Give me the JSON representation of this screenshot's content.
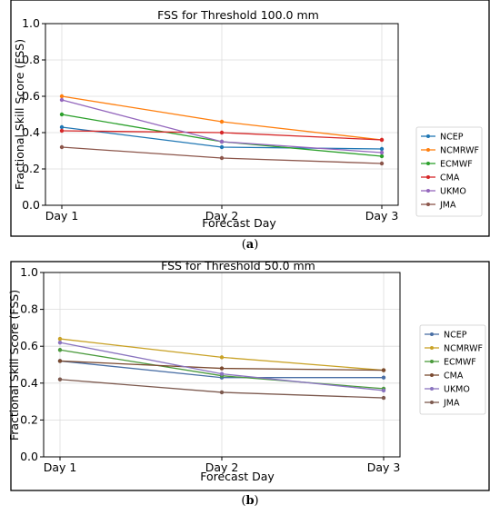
{
  "chart_data": [
    {
      "type": "line",
      "panel_label": "(a)",
      "title": "FSS for Threshold 100.0 mm",
      "xlabel": "Forecast Day",
      "ylabel": "Fractional Skill Score (FSS)",
      "categories": [
        "Day 1",
        "Day 2",
        "Day 3"
      ],
      "ylim": [
        0.0,
        1.0
      ],
      "yticks": [
        "0.0",
        "0.2",
        "0.4",
        "0.6",
        "0.8",
        "1.0"
      ],
      "grid": true,
      "legend": "right",
      "series": [
        {
          "name": "NCEP",
          "color": "#1f77b4",
          "values": [
            0.43,
            0.32,
            0.31
          ]
        },
        {
          "name": "NCMRWF",
          "color": "#ff7f0e",
          "values": [
            0.6,
            0.46,
            0.36
          ]
        },
        {
          "name": "ECMWF",
          "color": "#2ca02c",
          "values": [
            0.5,
            0.35,
            0.27
          ]
        },
        {
          "name": "CMA",
          "color": "#d62728",
          "values": [
            0.41,
            0.4,
            0.36
          ]
        },
        {
          "name": "UKMO",
          "color": "#9467bd",
          "values": [
            0.58,
            0.35,
            0.29
          ]
        },
        {
          "name": "JMA",
          "color": "#8c564b",
          "values": [
            0.32,
            0.26,
            0.23
          ]
        }
      ]
    },
    {
      "type": "line",
      "panel_label": "(b)",
      "title": "FSS for Threshold 50.0 mm",
      "xlabel": "Forecast Day",
      "ylabel": "Fractional Skill Score (FSS)",
      "categories": [
        "Day 1",
        "Day 2",
        "Day 3"
      ],
      "ylim": [
        0.0,
        1.0
      ],
      "yticks": [
        "0.0",
        "0.2",
        "0.4",
        "0.6",
        "0.8",
        "1.0"
      ],
      "grid": true,
      "legend": "right",
      "series": [
        {
          "name": "NCEP",
          "color": "#4a6fa5",
          "values": [
            0.52,
            0.43,
            0.43
          ]
        },
        {
          "name": "NCMRWF",
          "color": "#c9a227",
          "values": [
            0.64,
            0.54,
            0.47
          ]
        },
        {
          "name": "ECMWF",
          "color": "#4a9a3c",
          "values": [
            0.58,
            0.44,
            0.37
          ]
        },
        {
          "name": "CMA",
          "color": "#7a4a30",
          "values": [
            0.52,
            0.48,
            0.47
          ]
        },
        {
          "name": "UKMO",
          "color": "#8a74bf",
          "values": [
            0.62,
            0.45,
            0.36
          ]
        },
        {
          "name": "JMA",
          "color": "#7d5a4f",
          "values": [
            0.42,
            0.35,
            0.32
          ]
        }
      ]
    }
  ]
}
